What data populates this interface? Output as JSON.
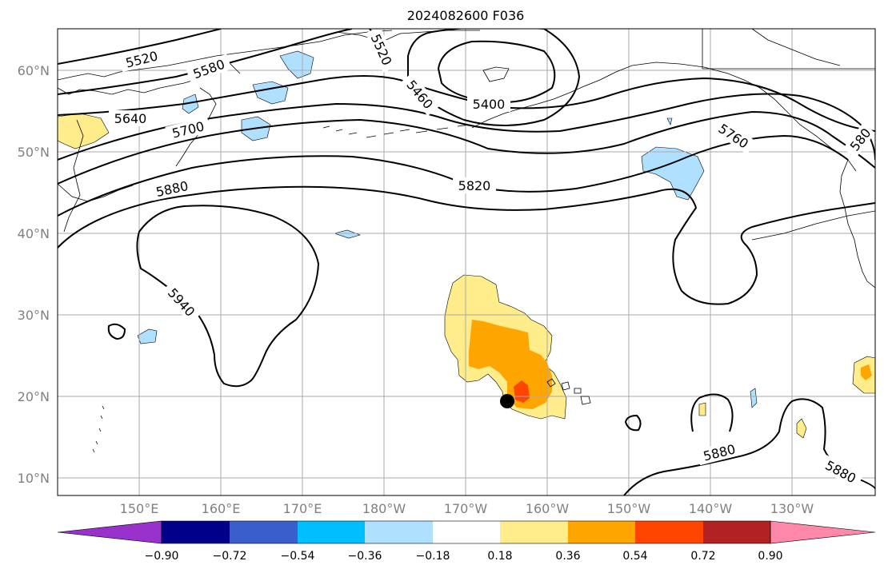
{
  "title": "2024082600 F036",
  "axes": {
    "lat_labels": [
      "60°N",
      "50°N",
      "40°N",
      "30°N",
      "20°N",
      "10°N"
    ],
    "lon_labels": [
      "150°E",
      "160°E",
      "170°E",
      "180°W",
      "170°W",
      "160°W",
      "150°W",
      "140°W",
      "130°W"
    ]
  },
  "contour_labels": [
    "5520",
    "5580",
    "5640",
    "5700",
    "5880",
    "5520",
    "5460",
    "5400",
    "5820",
    "5760",
    "580",
    "5940",
    "5880",
    "5880"
  ],
  "colorbar": {
    "ticks": [
      "−0.90",
      "−0.72",
      "−0.54",
      "−0.36",
      "−0.18",
      "0.18",
      "0.36",
      "0.54",
      "0.72",
      "0.90"
    ],
    "colors": [
      "#9932cc",
      "#00008b",
      "#3a5ecc",
      "#00bfff",
      "#b0e0ff",
      "#ffffff",
      "#ffec8b",
      "#ffa500",
      "#ff4500",
      "#b22222",
      "#ff88aa"
    ]
  },
  "colors": {
    "light_blue": "#b0e0ff",
    "light_yellow": "#ffec8b",
    "orange": "#ffa500",
    "red_orange": "#ff4500",
    "grid": "#aaaaaa",
    "tick_label": "#808080"
  },
  "marker": {
    "shape": "filled-circle",
    "color": "#000000"
  }
}
